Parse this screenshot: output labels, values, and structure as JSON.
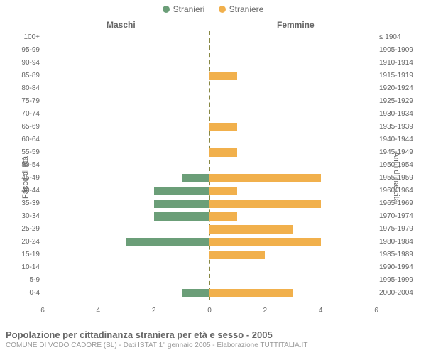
{
  "chart": {
    "type": "population-pyramid",
    "background_color": "#ffffff",
    "text_color": "#666666",
    "legend": {
      "items": [
        {
          "label": "Stranieri",
          "color": "#6b9e78"
        },
        {
          "label": "Straniere",
          "color": "#f1b04c"
        }
      ]
    },
    "headers": {
      "left": "Maschi",
      "right": "Femmine"
    },
    "y_axis_left_title": "Fasce di età",
    "y_axis_right_title": "Anni di nascita",
    "x_axis": {
      "min": -6,
      "max": 6,
      "ticks": [
        6,
        4,
        2,
        0,
        2,
        4,
        6
      ]
    },
    "center_line_color": "#888844",
    "male_color": "#6b9e78",
    "female_color": "#f1b04c",
    "bar_fill_opacity": 1,
    "rows": [
      {
        "age": "100+",
        "birth": "≤ 1904",
        "m": 0,
        "f": 0
      },
      {
        "age": "95-99",
        "birth": "1905-1909",
        "m": 0,
        "f": 0
      },
      {
        "age": "90-94",
        "birth": "1910-1914",
        "m": 0,
        "f": 0
      },
      {
        "age": "85-89",
        "birth": "1915-1919",
        "m": 0,
        "f": 1
      },
      {
        "age": "80-84",
        "birth": "1920-1924",
        "m": 0,
        "f": 0
      },
      {
        "age": "75-79",
        "birth": "1925-1929",
        "m": 0,
        "f": 0
      },
      {
        "age": "70-74",
        "birth": "1930-1934",
        "m": 0,
        "f": 0
      },
      {
        "age": "65-69",
        "birth": "1935-1939",
        "m": 0,
        "f": 1
      },
      {
        "age": "60-64",
        "birth": "1940-1944",
        "m": 0,
        "f": 0
      },
      {
        "age": "55-59",
        "birth": "1945-1949",
        "m": 0,
        "f": 1
      },
      {
        "age": "50-54",
        "birth": "1950-1954",
        "m": 0,
        "f": 0
      },
      {
        "age": "45-49",
        "birth": "1955-1959",
        "m": 1,
        "f": 4
      },
      {
        "age": "40-44",
        "birth": "1960-1964",
        "m": 2,
        "f": 1
      },
      {
        "age": "35-39",
        "birth": "1965-1969",
        "m": 2,
        "f": 4
      },
      {
        "age": "30-34",
        "birth": "1970-1974",
        "m": 2,
        "f": 1
      },
      {
        "age": "25-29",
        "birth": "1975-1979",
        "m": 0,
        "f": 3
      },
      {
        "age": "20-24",
        "birth": "1980-1984",
        "m": 3,
        "f": 4
      },
      {
        "age": "15-19",
        "birth": "1985-1989",
        "m": 0,
        "f": 2
      },
      {
        "age": "10-14",
        "birth": "1990-1994",
        "m": 0,
        "f": 0
      },
      {
        "age": "5-9",
        "birth": "1995-1999",
        "m": 0,
        "f": 0
      },
      {
        "age": "0-4",
        "birth": "2000-2004",
        "m": 1,
        "f": 3
      }
    ],
    "footer_title": "Popolazione per cittadinanza straniera per età e sesso - 2005",
    "footer_sub": "COMUNE DI VODO CADORE (BL) - Dati ISTAT 1° gennaio 2005 - Elaborazione TUTTITALIA.IT"
  }
}
